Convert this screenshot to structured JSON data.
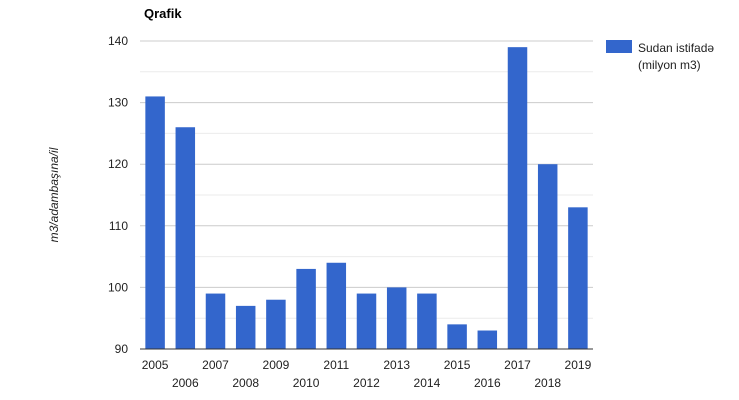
{
  "chart_data": {
    "type": "bar",
    "title": "Qrafik",
    "xlabel": "",
    "ylabel": "m3/adambaşına/il",
    "categories": [
      "2005",
      "2006",
      "2007",
      "2008",
      "2009",
      "2010",
      "2011",
      "2012",
      "2013",
      "2014",
      "2015",
      "2016",
      "2017",
      "2018",
      "2019"
    ],
    "series": [
      {
        "name": "Sudan istifadə (milyon m3)",
        "values": [
          131,
          126,
          99,
          97,
          98,
          103,
          104,
          99,
          100,
          99,
          94,
          93,
          139,
          120,
          113
        ]
      }
    ],
    "ylim": [
      90,
      140
    ],
    "yticks": [
      90,
      100,
      110,
      120,
      130,
      140
    ],
    "grid": true,
    "legend_position": "right",
    "colors": {
      "bar": "#3366cc",
      "grid": "#cccccc",
      "minor_grid": "#ebebeb",
      "axis": "#333333"
    }
  }
}
